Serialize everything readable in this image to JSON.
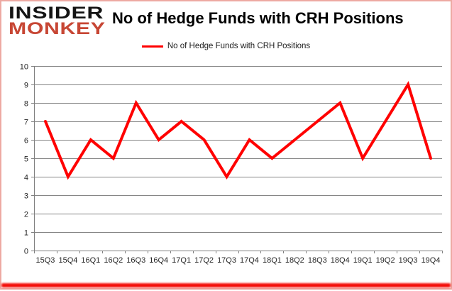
{
  "logo": {
    "line1": "INSIDER",
    "line2": "MONKEY"
  },
  "title": "No of Hedge Funds with CRH Positions",
  "legend": {
    "label": "No of Hedge Funds with CRH Positions"
  },
  "colors": {
    "series_red": "#ff0000",
    "logo_red": "#c74634",
    "border_pink": "#eda9a2",
    "bottom_bar_red": "#f40b06",
    "gridline_gray": "#858585",
    "axis_gray": "#808080",
    "axis_text": "#262626"
  },
  "chart_data": {
    "type": "line",
    "title": "No of Hedge Funds with CRH Positions",
    "categories": [
      "15Q3",
      "15Q4",
      "16Q1",
      "16Q2",
      "16Q3",
      "16Q4",
      "17Q1",
      "17Q2",
      "17Q3",
      "17Q4",
      "18Q1",
      "18Q2",
      "18Q3",
      "18Q4",
      "19Q1",
      "19Q2",
      "19Q3",
      "19Q4"
    ],
    "series": [
      {
        "name": "No of Hedge Funds with CRH Positions",
        "color": "#ff0000",
        "values": [
          7,
          4,
          6,
          5,
          8,
          6,
          7,
          6,
          4,
          6,
          5,
          6,
          7,
          8,
          5,
          7,
          9,
          5
        ]
      }
    ],
    "xlabel": "",
    "ylabel": "",
    "ylim": [
      0,
      10
    ],
    "ytick_step": 1,
    "grid": "horizontal",
    "legend_position": "top-center"
  }
}
